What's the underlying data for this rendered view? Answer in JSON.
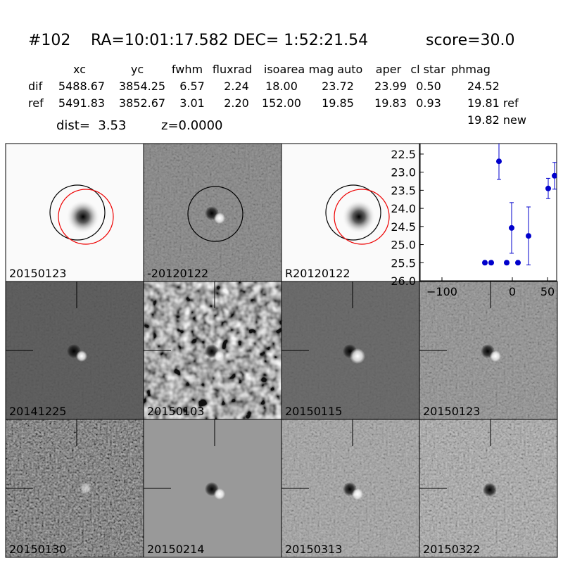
{
  "header": {
    "id": "#102",
    "coords": "RA=10:01:17.582 DEC= 1:52:21.54",
    "score": "score=30.0"
  },
  "table": {
    "columns": [
      "xc",
      "yc",
      "fwhm",
      "fluxrad",
      "isoarea",
      "mag auto",
      "aper",
      "cl star",
      "phmag"
    ],
    "rows": [
      {
        "label": "dif",
        "cells": [
          "5488.67",
          "3854.25",
          "6.57",
          "2.24",
          "18.00",
          "23.72",
          "23.99",
          "0.50",
          "24.52"
        ]
      },
      {
        "label": "ref",
        "cells": [
          "5491.83",
          "3852.67",
          "3.01",
          "2.20",
          "152.00",
          "19.85",
          "19.83",
          "0.93",
          "19.81 ref"
        ]
      }
    ],
    "extra": "19.82 new"
  },
  "dist": "dist=  3.53",
  "redshift": "z=0.0000",
  "panels": [
    {
      "label": "20150123"
    },
    {
      "label": "-20120122"
    },
    {
      "label": "R20120122"
    },
    {
      "label": "20141225"
    },
    {
      "label": "20150103"
    },
    {
      "label": "20150115"
    },
    {
      "label": "20150123",
      "color": "#ff0000"
    },
    {
      "label": "20150130"
    },
    {
      "label": "20150214"
    },
    {
      "label": "20150313"
    },
    {
      "label": "20150322"
    }
  ],
  "chart_data": {
    "type": "scatter",
    "color": "#0000cc",
    "x": [
      -39,
      -30,
      -19,
      -8,
      -1,
      8,
      23,
      51,
      60
    ],
    "y": [
      25.5,
      25.5,
      22.7,
      25.5,
      24.54,
      25.5,
      24.76,
      23.45,
      23.1
    ],
    "errors": [
      0.05,
      0.05,
      0.5,
      0.05,
      0.7,
      0.05,
      0.8,
      0.28,
      0.37
    ],
    "xlim": [
      -131,
      63
    ],
    "ylim": [
      26.0,
      22.21
    ],
    "xticks": [
      {
        "value": -100,
        "label": "−100"
      },
      0,
      50
    ],
    "yticks": [
      22.5,
      {
        "value": 23,
        "label": "23.0"
      },
      23.5,
      {
        "value": 24,
        "label": "24.0"
      },
      24.5,
      {
        "value": 25,
        "label": "25.0"
      },
      25.5,
      {
        "value": 26,
        "label": "26.0"
      }
    ]
  }
}
